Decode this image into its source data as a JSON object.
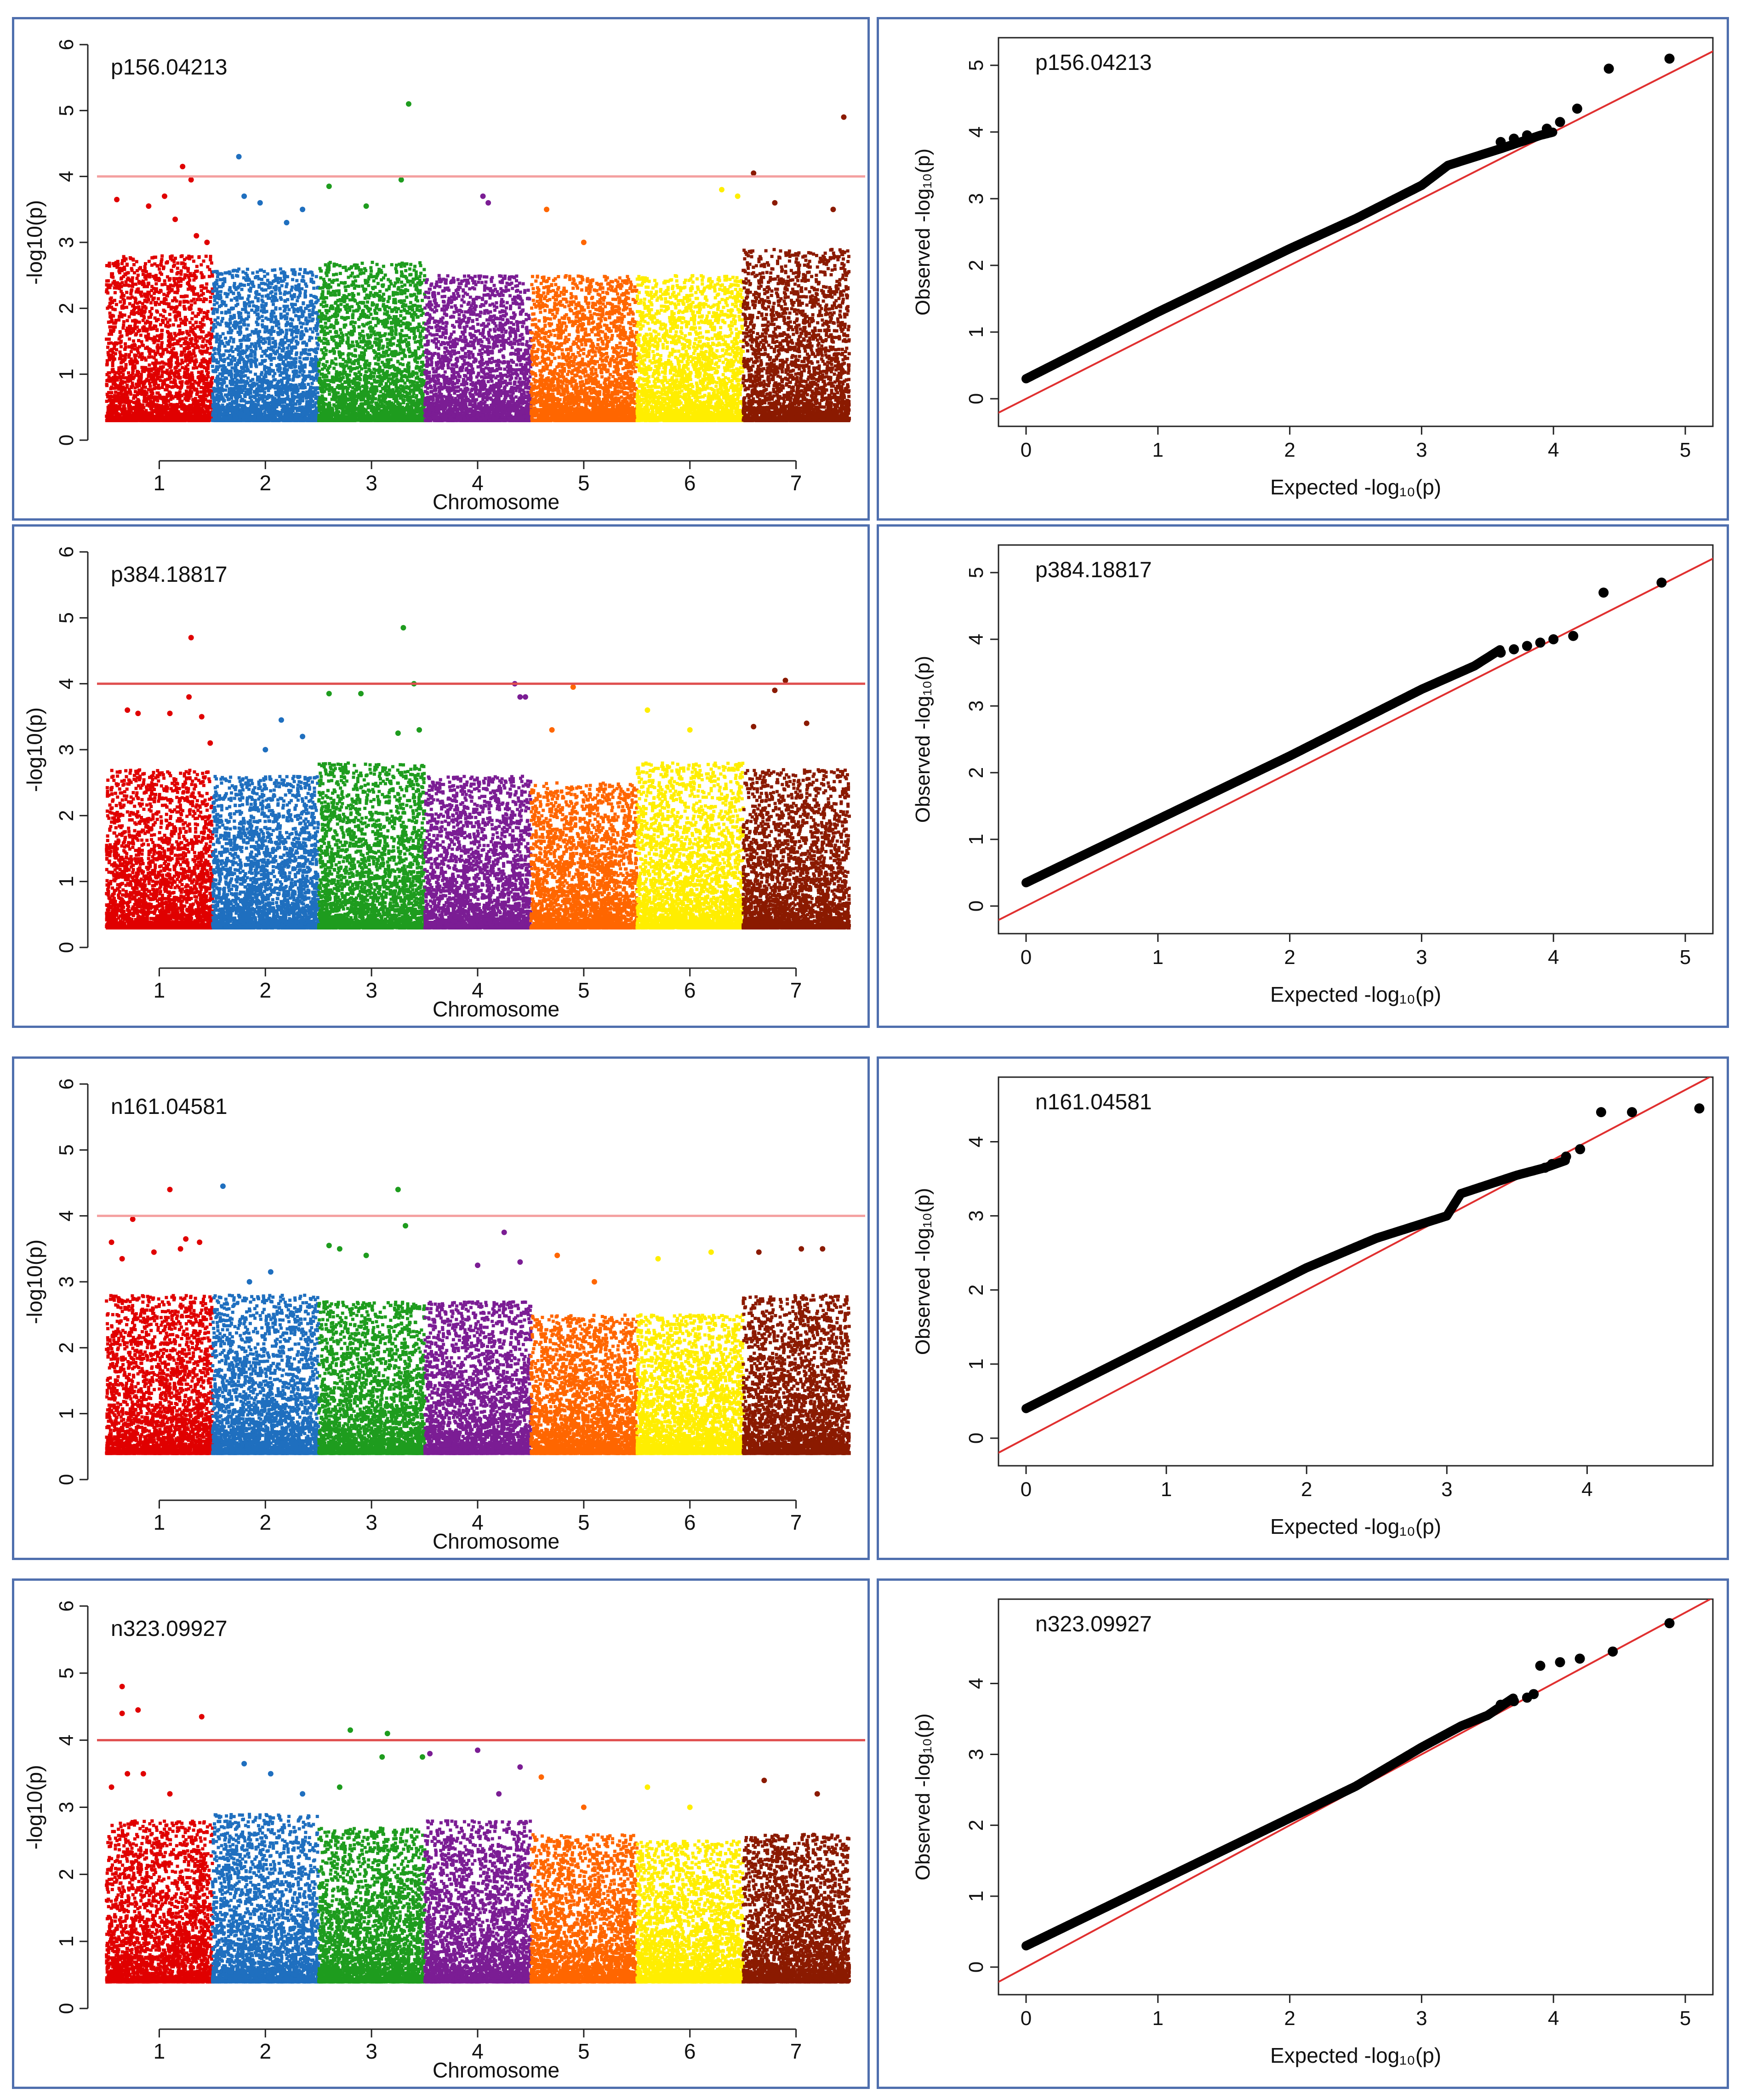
{
  "figure": {
    "rows": [
      {
        "manhattan": 0,
        "qq": 1
      },
      {
        "manhattan": 2,
        "qq": 3
      },
      {
        "manhattan": 4,
        "qq": 5
      },
      {
        "manhattan": 6,
        "qq": 7
      }
    ]
  },
  "chart_data": [
    {
      "type": "scatter",
      "kind": "manhattan",
      "title": "p156.04213",
      "xlabel": "Chromosome",
      "ylabel": "-log10(p)",
      "ylim": [
        0,
        6
      ],
      "yticks": [
        0,
        1,
        2,
        3,
        4,
        5,
        6
      ],
      "threshold": 4,
      "threshold_color": "#f4a0a0",
      "base_min": 0.3,
      "categories": [
        "1",
        "2",
        "3",
        "4",
        "5",
        "6",
        "7"
      ],
      "series_colors": [
        "#e00000",
        "#1f6fbf",
        "#1e9c1e",
        "#7b1d94",
        "#ff6600",
        "#ffee00",
        "#8b1a00"
      ],
      "bulk_max": [
        2.8,
        2.6,
        2.7,
        2.5,
        2.5,
        2.5,
        2.9
      ],
      "peaks": [
        {
          "chr": 1,
          "x": 0.1,
          "y": 3.65
        },
        {
          "chr": 1,
          "x": 0.4,
          "y": 3.55
        },
        {
          "chr": 1,
          "x": 0.55,
          "y": 3.7
        },
        {
          "chr": 1,
          "x": 0.65,
          "y": 3.35
        },
        {
          "chr": 1,
          "x": 0.72,
          "y": 4.15
        },
        {
          "chr": 1,
          "x": 0.8,
          "y": 3.95
        },
        {
          "chr": 1,
          "x": 0.85,
          "y": 3.1
        },
        {
          "chr": 1,
          "x": 0.95,
          "y": 3.0
        },
        {
          "chr": 2,
          "x": 0.25,
          "y": 4.3
        },
        {
          "chr": 2,
          "x": 0.3,
          "y": 3.7
        },
        {
          "chr": 2,
          "x": 0.45,
          "y": 3.6
        },
        {
          "chr": 2,
          "x": 0.7,
          "y": 3.3
        },
        {
          "chr": 2,
          "x": 0.85,
          "y": 3.5
        },
        {
          "chr": 3,
          "x": 0.1,
          "y": 3.85
        },
        {
          "chr": 3,
          "x": 0.45,
          "y": 3.55
        },
        {
          "chr": 3,
          "x": 0.78,
          "y": 3.95
        },
        {
          "chr": 3,
          "x": 0.85,
          "y": 5.1
        },
        {
          "chr": 4,
          "x": 0.55,
          "y": 3.7
        },
        {
          "chr": 4,
          "x": 0.6,
          "y": 3.6
        },
        {
          "chr": 5,
          "x": 0.15,
          "y": 3.5
        },
        {
          "chr": 5,
          "x": 0.5,
          "y": 3.0
        },
        {
          "chr": 6,
          "x": 0.8,
          "y": 3.8
        },
        {
          "chr": 6,
          "x": 0.95,
          "y": 3.7
        },
        {
          "chr": 7,
          "x": 0.1,
          "y": 4.05
        },
        {
          "chr": 7,
          "x": 0.3,
          "y": 3.6
        },
        {
          "chr": 7,
          "x": 0.85,
          "y": 3.5
        },
        {
          "chr": 7,
          "x": 0.95,
          "y": 4.9
        }
      ]
    },
    {
      "type": "scatter",
      "kind": "qq",
      "title": "p156.04213",
      "xlabel": "Expected  -log₁₀(p)",
      "ylabel": "Observed  -log₁₀(p)",
      "xlim": [
        0,
        5
      ],
      "ylim": [
        0,
        5
      ],
      "xticks": [
        0,
        1,
        2,
        3,
        4,
        5
      ],
      "yticks": [
        0,
        1,
        2,
        3,
        4,
        5
      ],
      "expected_max": 4.9,
      "curve": [
        [
          0,
          0.3
        ],
        [
          1,
          1.3
        ],
        [
          2,
          2.25
        ],
        [
          2.5,
          2.7
        ],
        [
          3,
          3.2
        ],
        [
          3.2,
          3.5
        ],
        [
          3.6,
          3.75
        ],
        [
          3.9,
          3.95
        ],
        [
          4.0,
          4.0
        ]
      ],
      "tail": [
        [
          3.6,
          3.85
        ],
        [
          3.7,
          3.9
        ],
        [
          3.8,
          3.95
        ],
        [
          3.95,
          4.05
        ],
        [
          4.05,
          4.15
        ],
        [
          4.18,
          4.35
        ],
        [
          4.42,
          4.95
        ],
        [
          4.88,
          5.1
        ]
      ]
    },
    {
      "type": "scatter",
      "kind": "manhattan",
      "title": "p384.18817",
      "xlabel": "Chromosome",
      "ylabel": "-log10(p)",
      "ylim": [
        0,
        6
      ],
      "yticks": [
        0,
        1,
        2,
        3,
        4,
        5,
        6
      ],
      "threshold": 4,
      "threshold_color": "#e05050",
      "base_min": 0.3,
      "categories": [
        "1",
        "2",
        "3",
        "4",
        "5",
        "6",
        "7"
      ],
      "series_colors": [
        "#e00000",
        "#1f6fbf",
        "#1e9c1e",
        "#7b1d94",
        "#ff6600",
        "#ffee00",
        "#8b1a00"
      ],
      "bulk_max": [
        2.7,
        2.6,
        2.8,
        2.6,
        2.5,
        2.8,
        2.7
      ],
      "peaks": [
        {
          "chr": 1,
          "x": 0.2,
          "y": 3.6
        },
        {
          "chr": 1,
          "x": 0.3,
          "y": 3.55
        },
        {
          "chr": 1,
          "x": 0.6,
          "y": 3.55
        },
        {
          "chr": 1,
          "x": 0.8,
          "y": 4.7
        },
        {
          "chr": 1,
          "x": 0.78,
          "y": 3.8
        },
        {
          "chr": 1,
          "x": 0.9,
          "y": 3.5
        },
        {
          "chr": 1,
          "x": 0.98,
          "y": 3.1
        },
        {
          "chr": 2,
          "x": 0.5,
          "y": 3.0
        },
        {
          "chr": 2,
          "x": 0.65,
          "y": 3.45
        },
        {
          "chr": 2,
          "x": 0.85,
          "y": 3.2
        },
        {
          "chr": 3,
          "x": 0.1,
          "y": 3.85
        },
        {
          "chr": 3,
          "x": 0.4,
          "y": 3.85
        },
        {
          "chr": 3,
          "x": 0.8,
          "y": 4.85
        },
        {
          "chr": 3,
          "x": 0.9,
          "y": 4.0
        },
        {
          "chr": 3,
          "x": 0.95,
          "y": 3.3
        },
        {
          "chr": 3,
          "x": 0.75,
          "y": 3.25
        },
        {
          "chr": 4,
          "x": 0.85,
          "y": 4.0
        },
        {
          "chr": 4,
          "x": 0.9,
          "y": 3.8
        },
        {
          "chr": 4,
          "x": 0.95,
          "y": 3.8
        },
        {
          "chr": 5,
          "x": 0.4,
          "y": 3.95
        },
        {
          "chr": 5,
          "x": 0.2,
          "y": 3.3
        },
        {
          "chr": 6,
          "x": 0.1,
          "y": 3.6
        },
        {
          "chr": 6,
          "x": 0.5,
          "y": 3.3
        },
        {
          "chr": 7,
          "x": 0.3,
          "y": 3.9
        },
        {
          "chr": 7,
          "x": 0.4,
          "y": 4.05
        },
        {
          "chr": 7,
          "x": 0.6,
          "y": 3.4
        },
        {
          "chr": 7,
          "x": 0.1,
          "y": 3.35
        }
      ]
    },
    {
      "type": "scatter",
      "kind": "qq",
      "title": "p384.18817",
      "xlabel": "Expected  -log₁₀(p)",
      "ylabel": "Observed  -log₁₀(p)",
      "xlim": [
        0,
        5
      ],
      "ylim": [
        0,
        5
      ],
      "xticks": [
        0,
        1,
        2,
        3,
        4,
        5
      ],
      "yticks": [
        0,
        1,
        2,
        3,
        4,
        5
      ],
      "expected_max": 4.85,
      "curve": [
        [
          0,
          0.35
        ],
        [
          1,
          1.3
        ],
        [
          2,
          2.25
        ],
        [
          2.5,
          2.75
        ],
        [
          3,
          3.25
        ],
        [
          3.4,
          3.6
        ],
        [
          3.6,
          3.85
        ]
      ],
      "tail": [
        [
          3.6,
          3.8
        ],
        [
          3.7,
          3.85
        ],
        [
          3.8,
          3.9
        ],
        [
          3.9,
          3.95
        ],
        [
          4.0,
          4.0
        ],
        [
          4.15,
          4.05
        ],
        [
          4.38,
          4.7
        ],
        [
          4.82,
          4.85
        ]
      ]
    },
    {
      "type": "scatter",
      "kind": "manhattan",
      "title": "n161.04581",
      "xlabel": "Chromosome",
      "ylabel": "-log10(p)",
      "ylim": [
        0,
        6
      ],
      "yticks": [
        0,
        1,
        2,
        3,
        4,
        5,
        6
      ],
      "threshold": 4,
      "threshold_color": "#f4a0a0",
      "base_min": 0.4,
      "categories": [
        "1",
        "2",
        "3",
        "4",
        "5",
        "6",
        "7"
      ],
      "series_colors": [
        "#e00000",
        "#1f6fbf",
        "#1e9c1e",
        "#7b1d94",
        "#ff6600",
        "#ffee00",
        "#8b1a00"
      ],
      "bulk_max": [
        2.8,
        2.8,
        2.7,
        2.7,
        2.5,
        2.5,
        2.8
      ],
      "peaks": [
        {
          "chr": 1,
          "x": 0.05,
          "y": 3.6
        },
        {
          "chr": 1,
          "x": 0.15,
          "y": 3.35
        },
        {
          "chr": 1,
          "x": 0.25,
          "y": 3.95
        },
        {
          "chr": 1,
          "x": 0.45,
          "y": 3.45
        },
        {
          "chr": 1,
          "x": 0.6,
          "y": 4.4
        },
        {
          "chr": 1,
          "x": 0.7,
          "y": 3.5
        },
        {
          "chr": 1,
          "x": 0.75,
          "y": 3.65
        },
        {
          "chr": 1,
          "x": 0.88,
          "y": 3.6
        },
        {
          "chr": 2,
          "x": 0.1,
          "y": 4.45
        },
        {
          "chr": 2,
          "x": 0.55,
          "y": 3.15
        },
        {
          "chr": 2,
          "x": 0.35,
          "y": 3.0
        },
        {
          "chr": 3,
          "x": 0.1,
          "y": 3.55
        },
        {
          "chr": 3,
          "x": 0.2,
          "y": 3.5
        },
        {
          "chr": 3,
          "x": 0.45,
          "y": 3.4
        },
        {
          "chr": 3,
          "x": 0.75,
          "y": 4.4
        },
        {
          "chr": 3,
          "x": 0.82,
          "y": 3.85
        },
        {
          "chr": 4,
          "x": 0.5,
          "y": 3.25
        },
        {
          "chr": 4,
          "x": 0.75,
          "y": 3.75
        },
        {
          "chr": 4,
          "x": 0.9,
          "y": 3.3
        },
        {
          "chr": 5,
          "x": 0.25,
          "y": 3.4
        },
        {
          "chr": 5,
          "x": 0.6,
          "y": 3.0
        },
        {
          "chr": 6,
          "x": 0.2,
          "y": 3.35
        },
        {
          "chr": 6,
          "x": 0.7,
          "y": 3.45
        },
        {
          "chr": 7,
          "x": 0.15,
          "y": 3.45
        },
        {
          "chr": 7,
          "x": 0.55,
          "y": 3.5
        },
        {
          "chr": 7,
          "x": 0.75,
          "y": 3.5
        }
      ]
    },
    {
      "type": "scatter",
      "kind": "qq",
      "title": "n161.04581",
      "xlabel": "Expected  -log₁₀(p)",
      "ylabel": "Observed  -log₁₀(p)",
      "xlim": [
        0,
        4.7
      ],
      "ylim": [
        0,
        4.5
      ],
      "xticks": [
        0,
        1,
        2,
        3,
        4
      ],
      "yticks": [
        0,
        1,
        2,
        3,
        4
      ],
      "expected_max": 4.8,
      "curve": [
        [
          0,
          0.4
        ],
        [
          1,
          1.35
        ],
        [
          2,
          2.3
        ],
        [
          2.5,
          2.7
        ],
        [
          3,
          3.0
        ],
        [
          3.1,
          3.3
        ],
        [
          3.5,
          3.55
        ],
        [
          3.7,
          3.65
        ],
        [
          3.85,
          3.75
        ]
      ],
      "tail": [
        [
          3.7,
          3.65
        ],
        [
          3.75,
          3.7
        ],
        [
          3.85,
          3.8
        ],
        [
          3.95,
          3.9
        ],
        [
          4.1,
          4.4
        ],
        [
          4.32,
          4.4
        ],
        [
          4.8,
          4.45
        ]
      ]
    },
    {
      "type": "scatter",
      "kind": "manhattan",
      "title": "n323.09927",
      "xlabel": "Chromosome",
      "ylabel": "-log10(p)",
      "ylim": [
        0,
        6
      ],
      "yticks": [
        0,
        1,
        2,
        3,
        4,
        5,
        6
      ],
      "threshold": 4,
      "threshold_color": "#e05050",
      "base_min": 0.4,
      "categories": [
        "1",
        "2",
        "3",
        "4",
        "5",
        "6",
        "7"
      ],
      "series_colors": [
        "#e00000",
        "#1f6fbf",
        "#1e9c1e",
        "#7b1d94",
        "#ff6600",
        "#ffee00",
        "#8b1a00"
      ],
      "bulk_max": [
        2.8,
        2.9,
        2.7,
        2.8,
        2.6,
        2.5,
        2.6
      ],
      "peaks": [
        {
          "chr": 1,
          "x": 0.05,
          "y": 3.3
        },
        {
          "chr": 1,
          "x": 0.15,
          "y": 4.8
        },
        {
          "chr": 1,
          "x": 0.15,
          "y": 4.4
        },
        {
          "chr": 1,
          "x": 0.3,
          "y": 4.45
        },
        {
          "chr": 1,
          "x": 0.2,
          "y": 3.5
        },
        {
          "chr": 1,
          "x": 0.35,
          "y": 3.5
        },
        {
          "chr": 1,
          "x": 0.9,
          "y": 4.35
        },
        {
          "chr": 1,
          "x": 0.6,
          "y": 3.2
        },
        {
          "chr": 2,
          "x": 0.3,
          "y": 3.65
        },
        {
          "chr": 2,
          "x": 0.55,
          "y": 3.5
        },
        {
          "chr": 2,
          "x": 0.85,
          "y": 3.2
        },
        {
          "chr": 3,
          "x": 0.3,
          "y": 4.15
        },
        {
          "chr": 3,
          "x": 0.65,
          "y": 4.1
        },
        {
          "chr": 3,
          "x": 0.6,
          "y": 3.75
        },
        {
          "chr": 3,
          "x": 0.2,
          "y": 3.3
        },
        {
          "chr": 3,
          "x": 0.98,
          "y": 3.75
        },
        {
          "chr": 4,
          "x": 0.05,
          "y": 3.8
        },
        {
          "chr": 4,
          "x": 0.5,
          "y": 3.85
        },
        {
          "chr": 4,
          "x": 0.9,
          "y": 3.6
        },
        {
          "chr": 4,
          "x": 0.7,
          "y": 3.2
        },
        {
          "chr": 5,
          "x": 0.1,
          "y": 3.45
        },
        {
          "chr": 5,
          "x": 0.5,
          "y": 3.0
        },
        {
          "chr": 6,
          "x": 0.1,
          "y": 3.3
        },
        {
          "chr": 6,
          "x": 0.5,
          "y": 3.0
        },
        {
          "chr": 7,
          "x": 0.2,
          "y": 3.4
        },
        {
          "chr": 7,
          "x": 0.7,
          "y": 3.2
        }
      ]
    },
    {
      "type": "scatter",
      "kind": "qq",
      "title": "n323.09927",
      "xlabel": "Expected  -log₁₀(p)",
      "ylabel": "Observed  -log₁₀(p)",
      "xlim": [
        0,
        5
      ],
      "ylim": [
        0,
        4.8
      ],
      "xticks": [
        0,
        1,
        2,
        3,
        4,
        5
      ],
      "yticks": [
        0,
        1,
        2,
        3,
        4
      ],
      "expected_max": 4.9,
      "curve": [
        [
          0,
          0.3
        ],
        [
          1,
          1.2
        ],
        [
          2,
          2.1
        ],
        [
          2.5,
          2.55
        ],
        [
          3,
          3.1
        ],
        [
          3.3,
          3.4
        ],
        [
          3.5,
          3.55
        ],
        [
          3.7,
          3.8
        ]
      ],
      "tail": [
        [
          3.6,
          3.7
        ],
        [
          3.7,
          3.75
        ],
        [
          3.8,
          3.8
        ],
        [
          3.85,
          3.85
        ],
        [
          3.9,
          4.25
        ],
        [
          4.05,
          4.3
        ],
        [
          4.2,
          4.35
        ],
        [
          4.45,
          4.45
        ],
        [
          4.88,
          4.85
        ]
      ]
    }
  ]
}
